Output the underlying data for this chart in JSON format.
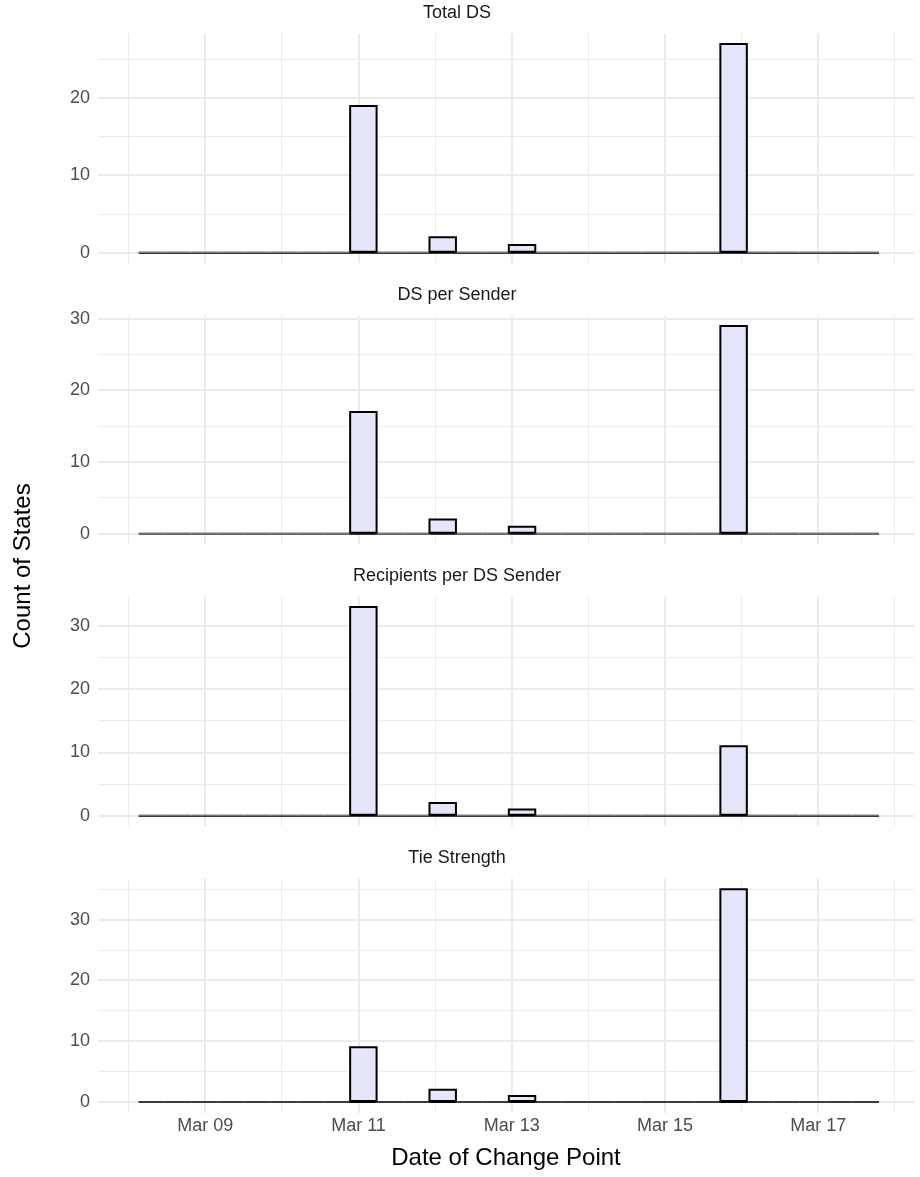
{
  "chart_data": [
    {
      "type": "histogram",
      "title": "Total DS",
      "bins": [
        "--03-08T03:07",
        "--03-08T11:24",
        "--03-08T19:41",
        "--03-09T03:58",
        "--03-09T12:15",
        "--03-09T20:32",
        "--03-10T04:49",
        "--03-10T13:06",
        "--03-10T21:23",
        "--03-11T05:40",
        "--03-11T13:57",
        "--03-11T22:14",
        "--03-12T06:31",
        "--03-12T14:48",
        "--03-12T23:05",
        "--03-13T07:22",
        "--03-13T15:39",
        "--03-13T23:56",
        "--03-14T08:13",
        "--03-14T16:30",
        "--03-15T00:47",
        "--03-15T09:04",
        "--03-15T17:21",
        "--03-16T01:38",
        "--03-16T09:55",
        "--03-16T18:12",
        "--03-17T02:29",
        "--03-17T10:46",
        "--03-17T19:03"
      ],
      "values": [
        0,
        0,
        0,
        0,
        0,
        0,
        0,
        0,
        19,
        0,
        0,
        2,
        0,
        0,
        1,
        0,
        0,
        0,
        0,
        0,
        0,
        0,
        27,
        0,
        0,
        0,
        0,
        0
      ],
      "color": "#e6e6fa",
      "xlim": [
        "--03-07T14:24",
        "--03-18T06:00"
      ],
      "xticks": [
        {
          "value": "--03-08",
          "label": null
        },
        {
          "value": "--03-09",
          "label": "Mar 09"
        },
        {
          "value": "--03-10",
          "label": null
        },
        {
          "value": "--03-11",
          "label": "Mar 11"
        },
        {
          "value": "--03-12",
          "label": null
        },
        {
          "value": "--03-13",
          "label": "Mar 13"
        },
        {
          "value": "--03-14",
          "label": null
        },
        {
          "value": "--03-15",
          "label": "Mar 15"
        },
        {
          "value": "--03-16",
          "label": null
        },
        {
          "value": "--03-17",
          "label": "Mar 17"
        },
        {
          "value": "--03-18",
          "label": null
        }
      ],
      "ylim": [
        -1.35,
        28.35
      ],
      "yticks": [
        0,
        {
          "value": 5,
          "label": null
        },
        10,
        {
          "value": 15,
          "label": null
        },
        20,
        {
          "value": 25,
          "label": null
        }
      ],
      "grid": true,
      "tick_labels": "y"
    },
    {
      "type": "histogram",
      "title": "DS per Sender",
      "ylabel": "Count of States",
      "bins": [
        "--03-08T03:07",
        "--03-08T11:24",
        "--03-08T19:41",
        "--03-09T03:58",
        "--03-09T12:15",
        "--03-09T20:32",
        "--03-10T04:49",
        "--03-10T13:06",
        "--03-10T21:23",
        "--03-11T05:40",
        "--03-11T13:57",
        "--03-11T22:14",
        "--03-12T06:31",
        "--03-12T14:48",
        "--03-12T23:05",
        "--03-13T07:22",
        "--03-13T15:39",
        "--03-13T23:56",
        "--03-14T08:13",
        "--03-14T16:30",
        "--03-15T00:47",
        "--03-15T09:04",
        "--03-15T17:21",
        "--03-16T01:38",
        "--03-16T09:55",
        "--03-16T18:12",
        "--03-17T02:29",
        "--03-17T10:46",
        "--03-17T19:03"
      ],
      "values": [
        0,
        0,
        0,
        0,
        0,
        0,
        0,
        0,
        17,
        0,
        0,
        2,
        0,
        0,
        1,
        0,
        0,
        0,
        0,
        0,
        0,
        0,
        29,
        0,
        0,
        0,
        0,
        0
      ],
      "color": "#e6e6fa",
      "xlim": [
        "--03-07T14:24",
        "--03-18T06:00"
      ],
      "xticks": [
        {
          "value": "--03-08",
          "label": null
        },
        {
          "value": "--03-09",
          "label": "Mar 09"
        },
        {
          "value": "--03-10",
          "label": null
        },
        {
          "value": "--03-11",
          "label": "Mar 11"
        },
        {
          "value": "--03-12",
          "label": null
        },
        {
          "value": "--03-13",
          "label": "Mar 13"
        },
        {
          "value": "--03-14",
          "label": null
        },
        {
          "value": "--03-15",
          "label": "Mar 15"
        },
        {
          "value": "--03-16",
          "label": null
        },
        {
          "value": "--03-17",
          "label": "Mar 17"
        },
        {
          "value": "--03-18",
          "label": null
        }
      ],
      "ylim": [
        -1.45,
        30.45
      ],
      "yticks": [
        0,
        {
          "value": 5,
          "label": null
        },
        10,
        {
          "value": 15,
          "label": null
        },
        20,
        {
          "value": 25,
          "label": null
        },
        30
      ],
      "grid": true,
      "tick_labels": "y"
    },
    {
      "type": "histogram",
      "title": "Recipients per DS Sender",
      "bins": [
        "--03-08T03:07",
        "--03-08T11:24",
        "--03-08T19:41",
        "--03-09T03:58",
        "--03-09T12:15",
        "--03-09T20:32",
        "--03-10T04:49",
        "--03-10T13:06",
        "--03-10T21:23",
        "--03-11T05:40",
        "--03-11T13:57",
        "--03-11T22:14",
        "--03-12T06:31",
        "--03-12T14:48",
        "--03-12T23:05",
        "--03-13T07:22",
        "--03-13T15:39",
        "--03-13T23:56",
        "--03-14T08:13",
        "--03-14T16:30",
        "--03-15T00:47",
        "--03-15T09:04",
        "--03-15T17:21",
        "--03-16T01:38",
        "--03-16T09:55",
        "--03-16T18:12",
        "--03-17T02:29",
        "--03-17T10:46",
        "--03-17T19:03"
      ],
      "values": [
        0,
        0,
        0,
        0,
        0,
        0,
        0,
        0,
        33,
        0,
        0,
        2,
        0,
        0,
        1,
        0,
        0,
        0,
        0,
        0,
        0,
        0,
        11,
        0,
        0,
        0,
        0,
        0
      ],
      "color": "#e6e6fa",
      "xlim": [
        "--03-07T14:24",
        "--03-18T06:00"
      ],
      "xticks": [
        {
          "value": "--03-08",
          "label": null
        },
        {
          "value": "--03-09",
          "label": "Mar 09"
        },
        {
          "value": "--03-10",
          "label": null
        },
        {
          "value": "--03-11",
          "label": "Mar 11"
        },
        {
          "value": "--03-12",
          "label": null
        },
        {
          "value": "--03-13",
          "label": "Mar 13"
        },
        {
          "value": "--03-14",
          "label": null
        },
        {
          "value": "--03-15",
          "label": "Mar 15"
        },
        {
          "value": "--03-16",
          "label": null
        },
        {
          "value": "--03-17",
          "label": "Mar 17"
        },
        {
          "value": "--03-18",
          "label": null
        }
      ],
      "ylim": [
        -1.65,
        34.65
      ],
      "yticks": [
        0,
        {
          "value": 5,
          "label": null
        },
        10,
        {
          "value": 15,
          "label": null
        },
        20,
        {
          "value": 25,
          "label": null
        },
        30
      ],
      "grid": true,
      "tick_labels": "y"
    },
    {
      "type": "histogram",
      "title": "Tie Strength",
      "xlabel": "Date of Change Point",
      "bins": [
        "--03-08T03:07",
        "--03-08T11:24",
        "--03-08T19:41",
        "--03-09T03:58",
        "--03-09T12:15",
        "--03-09T20:32",
        "--03-10T04:49",
        "--03-10T13:06",
        "--03-10T21:23",
        "--03-11T05:40",
        "--03-11T13:57",
        "--03-11T22:14",
        "--03-12T06:31",
        "--03-12T14:48",
        "--03-12T23:05",
        "--03-13T07:22",
        "--03-13T15:39",
        "--03-13T23:56",
        "--03-14T08:13",
        "--03-14T16:30",
        "--03-15T00:47",
        "--03-15T09:04",
        "--03-15T17:21",
        "--03-16T01:38",
        "--03-16T09:55",
        "--03-16T18:12",
        "--03-17T02:29",
        "--03-17T10:46",
        "--03-17T19:03"
      ],
      "values": [
        0,
        0,
        0,
        0,
        0,
        0,
        0,
        0,
        9,
        0,
        0,
        2,
        0,
        0,
        1,
        0,
        0,
        0,
        0,
        0,
        0,
        0,
        35,
        0,
        0,
        0,
        0,
        0
      ],
      "color": "#e6e6fa",
      "xlim": [
        "--03-07T14:24",
        "--03-18T06:00"
      ],
      "xticks": [
        {
          "value": "--03-08",
          "label": null
        },
        {
          "value": "--03-09",
          "label": "Mar 09"
        },
        {
          "value": "--03-10",
          "label": null
        },
        {
          "value": "--03-11",
          "label": "Mar 11"
        },
        {
          "value": "--03-12",
          "label": null
        },
        {
          "value": "--03-13",
          "label": "Mar 13"
        },
        {
          "value": "--03-14",
          "label": null
        },
        {
          "value": "--03-15",
          "label": "Mar 15"
        },
        {
          "value": "--03-16",
          "label": null
        },
        {
          "value": "--03-17",
          "label": "Mar 17"
        },
        {
          "value": "--03-18",
          "label": null
        }
      ],
      "ylim": [
        -1.75,
        36.75
      ],
      "yticks": [
        0,
        {
          "value": 5,
          "label": null
        },
        10,
        {
          "value": 15,
          "label": null
        },
        20,
        {
          "value": 25,
          "label": null
        },
        30,
        {
          "value": 35,
          "label": null
        }
      ],
      "grid": true
    }
  ]
}
